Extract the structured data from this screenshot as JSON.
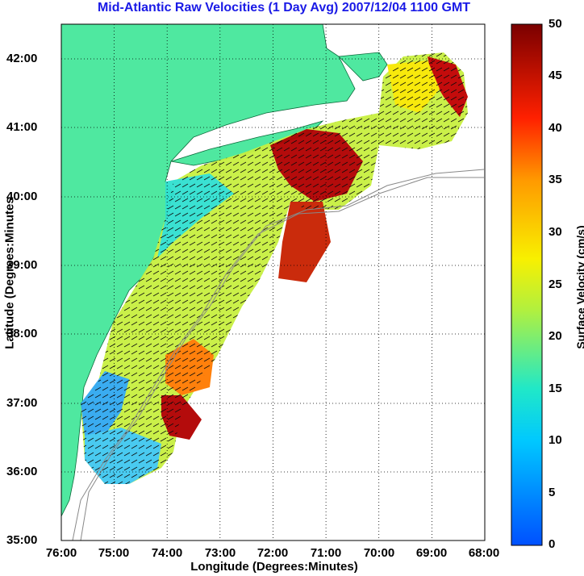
{
  "title": "Mid-Atlantic Raw Velocities (1 Day Avg) 2007/12/04 1100 GMT",
  "axes": {
    "xlabel": "Longitude (Degrees:Minutes)",
    "ylabel": "Latitude (Degrees:Minutes",
    "xticks": [
      "76:00",
      "75:00",
      "74:00",
      "73:00",
      "72:00",
      "71:00",
      "70:00",
      "69:00",
      "68:00"
    ],
    "yticks": [
      "42:00",
      "41:00",
      "40:00",
      "39:00",
      "38:00",
      "37:00",
      "36:00",
      "35:00"
    ],
    "grid": true
  },
  "colorbar": {
    "label": "Surface Velocity (cm/s)",
    "ticks": [
      "50",
      "45",
      "40",
      "35",
      "30",
      "25",
      "20",
      "15",
      "10",
      "5",
      "0"
    ],
    "range": [
      0,
      50
    ]
  },
  "colors": {
    "land": "#4fe8a0",
    "title": "#1a1ae6",
    "frame": "#000000"
  }
}
